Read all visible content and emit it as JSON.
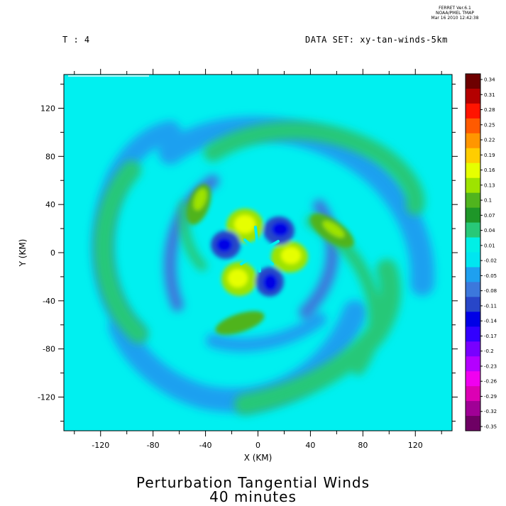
{
  "header": {
    "version_lines": [
      "FERRET Ver.6.1",
      "NOAA/PMEL TMAP",
      "Mar 16 2010 12:42:38"
    ],
    "time_label": "T : 4",
    "dataset_label": "DATA SET: xy-tan-winds-5km"
  },
  "footer": {
    "title_line1": "Perturbation Tangential Winds",
    "title_line2": "40 minutes"
  },
  "chart_data": {
    "type": "heatmap",
    "title": "Perturbation Tangential Winds",
    "subtitle": "40 minutes",
    "xlabel": "X (KM)",
    "ylabel": "Y (KM)",
    "xlim": [
      -148,
      148
    ],
    "ylim": [
      -148,
      148
    ],
    "xticks": [
      -120,
      -80,
      -40,
      0,
      40,
      80,
      120
    ],
    "yticks": [
      -120,
      -80,
      -40,
      0,
      40,
      80,
      120
    ],
    "background_value": -0.01,
    "colorbar": {
      "levels": [
        0.34,
        0.31,
        0.28,
        0.25,
        0.22,
        0.19,
        0.16,
        0.13,
        0.1,
        0.07,
        0.04,
        0.01,
        -0.02,
        -0.05,
        -0.08,
        -0.11,
        -0.14,
        -0.17,
        -0.2,
        -0.23,
        -0.26,
        -0.29,
        -0.32,
        -0.35
      ],
      "colors": [
        "#6e0000",
        "#b40000",
        "#ff1400",
        "#ff5a00",
        "#ff9600",
        "#ffcd00",
        "#e6ff00",
        "#9ee300",
        "#50b41e",
        "#1e9628",
        "#28c878",
        "#00f0e6",
        "#00e6f0",
        "#1ea0f0",
        "#3c78dc",
        "#2846c8",
        "#0000e6",
        "#3200ff",
        "#7800ff",
        "#b400ff",
        "#f000f0",
        "#dc00b4",
        "#a00096",
        "#6e0064"
      ]
    },
    "features": [
      {
        "cx": -10,
        "cy": 22,
        "value": 0.16
      },
      {
        "cx": 24,
        "cy": -4,
        "value": 0.16
      },
      {
        "cx": -15,
        "cy": -20,
        "value": 0.16
      },
      {
        "cx": 18,
        "cy": 18,
        "value": -0.14
      },
      {
        "cx": -30,
        "cy": 5,
        "value": -0.14
      },
      {
        "cx": 8,
        "cy": -24,
        "value": -0.14
      },
      {
        "cx": -45,
        "cy": 37,
        "value": 0.1
      },
      {
        "cx": 55,
        "cy": 18,
        "value": 0.1
      },
      {
        "cx": -20,
        "cy": -60,
        "value": 0.1
      },
      {
        "cx": 70,
        "cy": 75,
        "value": 0.05
      },
      {
        "cx": -105,
        "cy": 30,
        "value": 0.05
      },
      {
        "cx": 60,
        "cy": -95,
        "value": 0.05
      }
    ]
  }
}
